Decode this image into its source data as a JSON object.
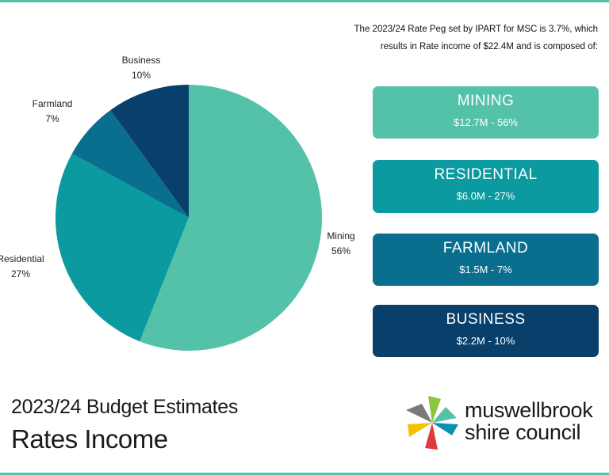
{
  "intro": {
    "line1": "The 2023/24 Rate Peg set by IPART for MSC is 3.7%, which",
    "line2": "results in Rate income of $22.4M and is composed of:"
  },
  "cards": [
    {
      "title": "MINING",
      "value": "$12.7M - 56%",
      "color": "#54c2a9"
    },
    {
      "title": "RESIDENTIAL",
      "value": "$6.0M - 27%",
      "color": "#0b9a9f"
    },
    {
      "title": "FARMLAND",
      "value": "$1.5M - 7%",
      "color": "#0a6f8f"
    },
    {
      "title": "BUSINESS",
      "value": "$2.2M - 10%",
      "color": "#083f6b"
    }
  ],
  "footer": {
    "subtitle": "2023/24 Budget Estimates",
    "title": "Rates Income"
  },
  "logo": {
    "line1": "muswellbrook",
    "line2": "shire council",
    "colors": [
      "#7a7a7a",
      "#8bc63f",
      "#54c2a9",
      "#0a8fb0",
      "#e03a3e",
      "#f2c200"
    ]
  },
  "chart_data": {
    "type": "pie",
    "categories": [
      "Mining",
      "Residential",
      "Farmland",
      "Business"
    ],
    "values": [
      56,
      27,
      7,
      10
    ],
    "labels": [
      "56%",
      "27%",
      "7%",
      "10%"
    ],
    "colors": [
      "#54c2a9",
      "#0b9a9f",
      "#0a6f8f",
      "#083f6b"
    ],
    "start": "12 o'clock",
    "direction": "clockwise"
  }
}
